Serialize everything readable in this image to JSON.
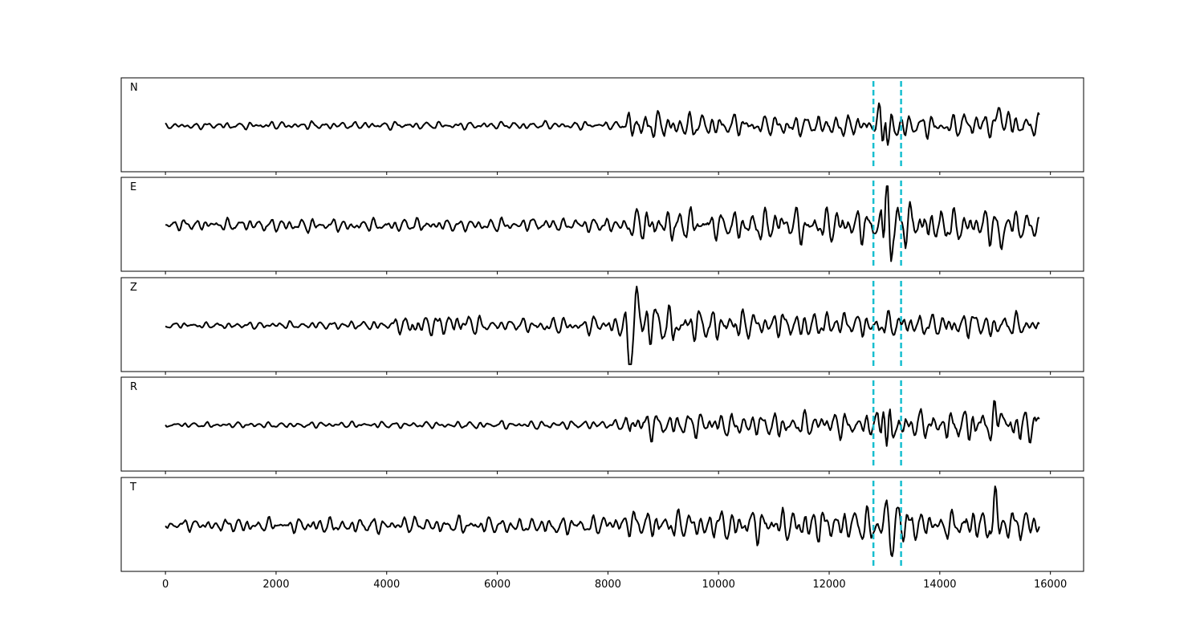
{
  "chart_data": {
    "type": "line",
    "title": "",
    "xlabel": "",
    "ylabel": "",
    "xlim": [
      -800,
      16600
    ],
    "x_ticks": [
      0,
      2000,
      4000,
      6000,
      8000,
      10000,
      12000,
      14000,
      16000
    ],
    "x_tick_labels": [
      "0",
      "2000",
      "4000",
      "6000",
      "8000",
      "10000",
      "12000",
      "14000",
      "16000"
    ],
    "trace_x_range": [
      0,
      15800
    ],
    "grid": false,
    "trace_color": "#000000",
    "marker_color": "#17becf",
    "markers_x": [
      12800,
      13300
    ],
    "panels": [
      {
        "label": "N",
        "envelope": [
          [
            0,
            0.08
          ],
          [
            2000,
            0.1
          ],
          [
            4000,
            0.1
          ],
          [
            6000,
            0.1
          ],
          [
            8000,
            0.1
          ],
          [
            8300,
            0.12
          ],
          [
            8400,
            0.4
          ],
          [
            9000,
            0.35
          ],
          [
            10000,
            0.3
          ],
          [
            12000,
            0.3
          ],
          [
            12800,
            0.3
          ],
          [
            13000,
            0.95
          ],
          [
            13300,
            0.35
          ],
          [
            14000,
            0.3
          ],
          [
            15000,
            0.4
          ],
          [
            15800,
            0.3
          ]
        ],
        "peaks": [
          {
            "x": 13000,
            "amplitude": 0.9
          },
          {
            "x": 13050,
            "amplitude": -0.95
          },
          {
            "x": 15100,
            "amplitude": 0.5
          }
        ]
      },
      {
        "label": "E",
        "envelope": [
          [
            0,
            0.15
          ],
          [
            2000,
            0.17
          ],
          [
            4000,
            0.17
          ],
          [
            6000,
            0.17
          ],
          [
            8000,
            0.2
          ],
          [
            8300,
            0.2
          ],
          [
            8400,
            0.4
          ],
          [
            9000,
            0.45
          ],
          [
            10000,
            0.4
          ],
          [
            12000,
            0.45
          ],
          [
            12800,
            0.45
          ],
          [
            13000,
            1.0
          ],
          [
            13300,
            0.55
          ],
          [
            14000,
            0.45
          ],
          [
            15000,
            0.45
          ],
          [
            15800,
            0.4
          ]
        ],
        "peaks": [
          {
            "x": 13050,
            "amplitude": 1.0
          },
          {
            "x": 13100,
            "amplitude": -0.8
          },
          {
            "x": 15100,
            "amplitude": -0.55
          }
        ]
      },
      {
        "label": "Z",
        "envelope": [
          [
            0,
            0.08
          ],
          [
            2000,
            0.1
          ],
          [
            4000,
            0.12
          ],
          [
            4400,
            0.3
          ],
          [
            5500,
            0.3
          ],
          [
            6000,
            0.15
          ],
          [
            8000,
            0.25
          ],
          [
            8300,
            0.35
          ],
          [
            8400,
            1.0
          ],
          [
            8900,
            0.55
          ],
          [
            10000,
            0.4
          ],
          [
            12000,
            0.35
          ],
          [
            13000,
            0.35
          ],
          [
            14000,
            0.3
          ],
          [
            15000,
            0.35
          ],
          [
            15800,
            0.25
          ]
        ],
        "peaks": [
          {
            "x": 8400,
            "amplitude": -1.0
          },
          {
            "x": 8500,
            "amplitude": 0.65
          }
        ]
      },
      {
        "label": "R",
        "envelope": [
          [
            0,
            0.08
          ],
          [
            2000,
            0.08
          ],
          [
            4000,
            0.08
          ],
          [
            6000,
            0.1
          ],
          [
            8000,
            0.12
          ],
          [
            8300,
            0.15
          ],
          [
            8400,
            0.4
          ],
          [
            9000,
            0.35
          ],
          [
            10000,
            0.3
          ],
          [
            12000,
            0.35
          ],
          [
            12800,
            0.3
          ],
          [
            13000,
            0.95
          ],
          [
            13300,
            0.4
          ],
          [
            14000,
            0.35
          ],
          [
            15000,
            0.55
          ],
          [
            15800,
            0.4
          ]
        ],
        "peaks": [
          {
            "x": 13000,
            "amplitude": 0.95
          },
          {
            "x": 13050,
            "amplitude": -0.9
          },
          {
            "x": 15100,
            "amplitude": 0.6
          }
        ]
      },
      {
        "label": "T",
        "envelope": [
          [
            0,
            0.15
          ],
          [
            2000,
            0.2
          ],
          [
            4000,
            0.22
          ],
          [
            6000,
            0.22
          ],
          [
            8000,
            0.25
          ],
          [
            8400,
            0.35
          ],
          [
            10000,
            0.4
          ],
          [
            12000,
            0.45
          ],
          [
            12800,
            0.45
          ],
          [
            13050,
            1.0
          ],
          [
            13300,
            0.5
          ],
          [
            14000,
            0.3
          ],
          [
            15000,
            0.55
          ],
          [
            15800,
            0.3
          ]
        ],
        "peaks": [
          {
            "x": 13050,
            "amplitude": 0.95
          },
          {
            "x": 13100,
            "amplitude": -1.0
          },
          {
            "x": 15000,
            "amplitude": 0.55
          }
        ]
      }
    ]
  }
}
